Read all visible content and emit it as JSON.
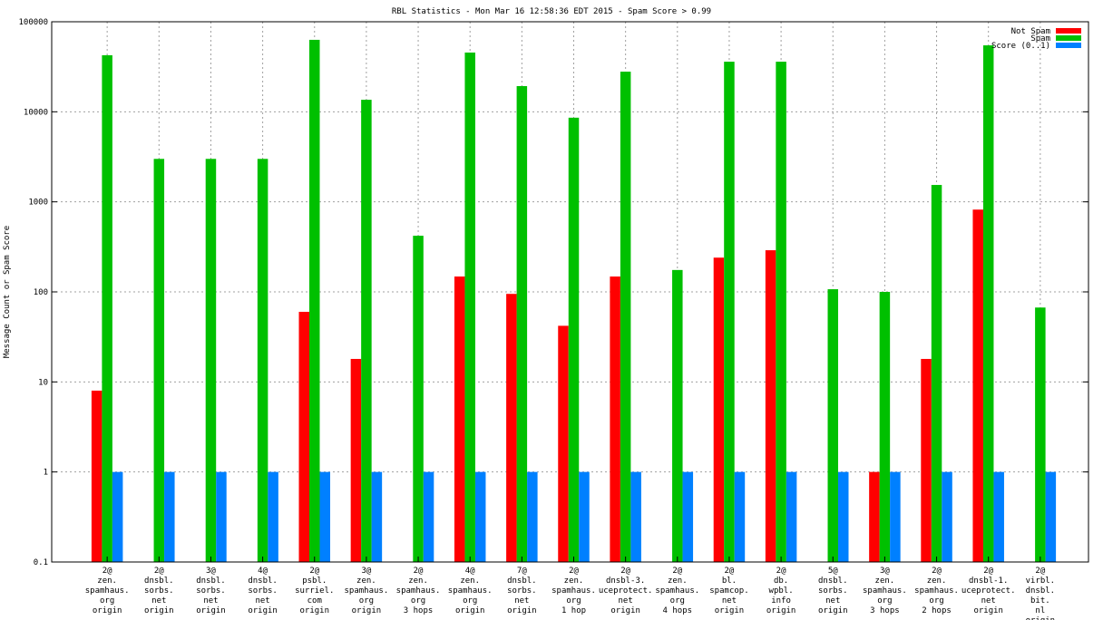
{
  "chart_data": {
    "type": "bar",
    "title": "RBL Statistics - Mon Mar 16 12:58:36 EDT 2015 - Spam Score > 0.99",
    "xlabel": "",
    "ylabel": "Message Count or Spam Score",
    "yscale": "log",
    "ylim": [
      0.1,
      100000
    ],
    "yticks": [
      "0.1",
      "1",
      "10",
      "100",
      "1000",
      "10000",
      "100000"
    ],
    "grid": true,
    "legend_position": "top-right",
    "categories": [
      [
        "2@",
        "zen.",
        "spamhaus.",
        "org",
        "origin"
      ],
      [
        "2@",
        "dnsbl.",
        "sorbs.",
        "net",
        "origin"
      ],
      [
        "3@",
        "dnsbl.",
        "sorbs.",
        "net",
        "origin"
      ],
      [
        "4@",
        "dnsbl.",
        "sorbs.",
        "net",
        "origin"
      ],
      [
        "2@",
        "psbl.",
        "surriel.",
        "com",
        "origin"
      ],
      [
        "3@",
        "zen.",
        "spamhaus.",
        "org",
        "origin"
      ],
      [
        "2@",
        "zen.",
        "spamhaus.",
        "org",
        "3 hops"
      ],
      [
        "4@",
        "zen.",
        "spamhaus.",
        "org",
        "origin"
      ],
      [
        "7@",
        "dnsbl.",
        "sorbs.",
        "net",
        "origin"
      ],
      [
        "2@",
        "zen.",
        "spamhaus.",
        "org",
        "1 hop"
      ],
      [
        "2@",
        "dnsbl-3.",
        "uceprotect.",
        "net",
        "origin"
      ],
      [
        "2@",
        "zen.",
        "spamhaus.",
        "org",
        "4 hops"
      ],
      [
        "2@",
        "bl.",
        "spamcop.",
        "net",
        "origin"
      ],
      [
        "2@",
        "db.",
        "wpbl.",
        "info",
        "origin"
      ],
      [
        "5@",
        "dnsbl.",
        "sorbs.",
        "net",
        "origin"
      ],
      [
        "3@",
        "zen.",
        "spamhaus.",
        "org",
        "3 hops"
      ],
      [
        "2@",
        "zen.",
        "spamhaus.",
        "org",
        "2 hops"
      ],
      [
        "2@",
        "dnsbl-1.",
        "uceprotect.",
        "net",
        "origin"
      ],
      [
        "2@",
        "virbl.",
        "dnsbl.",
        "bit.",
        "nl",
        "origin"
      ]
    ],
    "series": [
      {
        "name": "Not Spam",
        "color": "#ff0000",
        "values": [
          8,
          null,
          null,
          null,
          60,
          18,
          null,
          148,
          95,
          42,
          148,
          null,
          240,
          290,
          null,
          1,
          18,
          820,
          null
        ]
      },
      {
        "name": "Spam",
        "color": "#00c000",
        "values": [
          42500,
          3000,
          3000,
          3000,
          63000,
          13600,
          420,
          45500,
          19300,
          8600,
          27900,
          175,
          36000,
          36000,
          107,
          100,
          1540,
          54700,
          67
        ]
      },
      {
        "name": "Score (0..1)",
        "color": "#0080ff",
        "values": [
          1,
          1,
          1,
          1,
          1,
          1,
          1,
          1,
          1,
          1,
          1,
          1,
          1,
          1,
          1,
          1,
          1,
          1,
          1
        ]
      }
    ]
  }
}
